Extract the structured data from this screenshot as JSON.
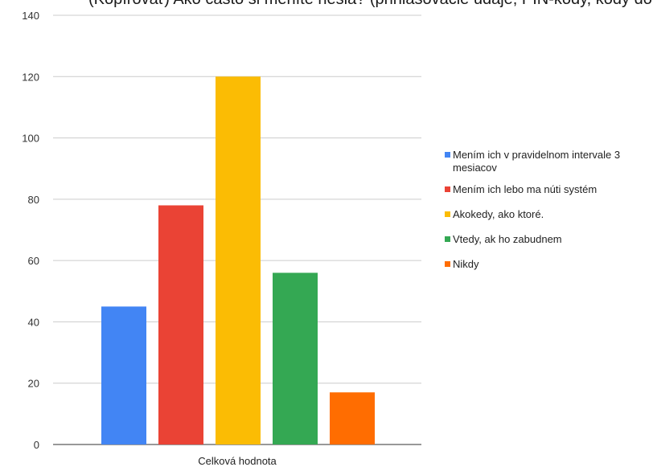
{
  "chart_data": {
    "type": "bar",
    "title": "(Kopírovať) Ako často si meníte heslá? (prihlasovacie údaje, PIN-kódy, kódy do budov, atď.)",
    "categories": [
      "Celková hodnota"
    ],
    "ylim": [
      0,
      140
    ],
    "yticks": [
      0,
      20,
      40,
      60,
      80,
      100,
      120,
      140
    ],
    "grid": true,
    "legend_position": "right",
    "series": [
      {
        "name": "Mením ich v pravidelnom intervale 3 mesiacov",
        "values": [
          45
        ],
        "color": "#4285f4"
      },
      {
        "name": "Mením ich lebo ma núti systém",
        "values": [
          78
        ],
        "color": "#ea4335"
      },
      {
        "name": "Akokedy, ako ktoré.",
        "values": [
          120
        ],
        "color": "#fbbc04"
      },
      {
        "name": "Vtedy, ak ho zabudnem",
        "values": [
          56
        ],
        "color": "#34a853"
      },
      {
        "name": "Nikdy",
        "values": [
          17
        ],
        "color": "#ff6d01"
      }
    ]
  }
}
